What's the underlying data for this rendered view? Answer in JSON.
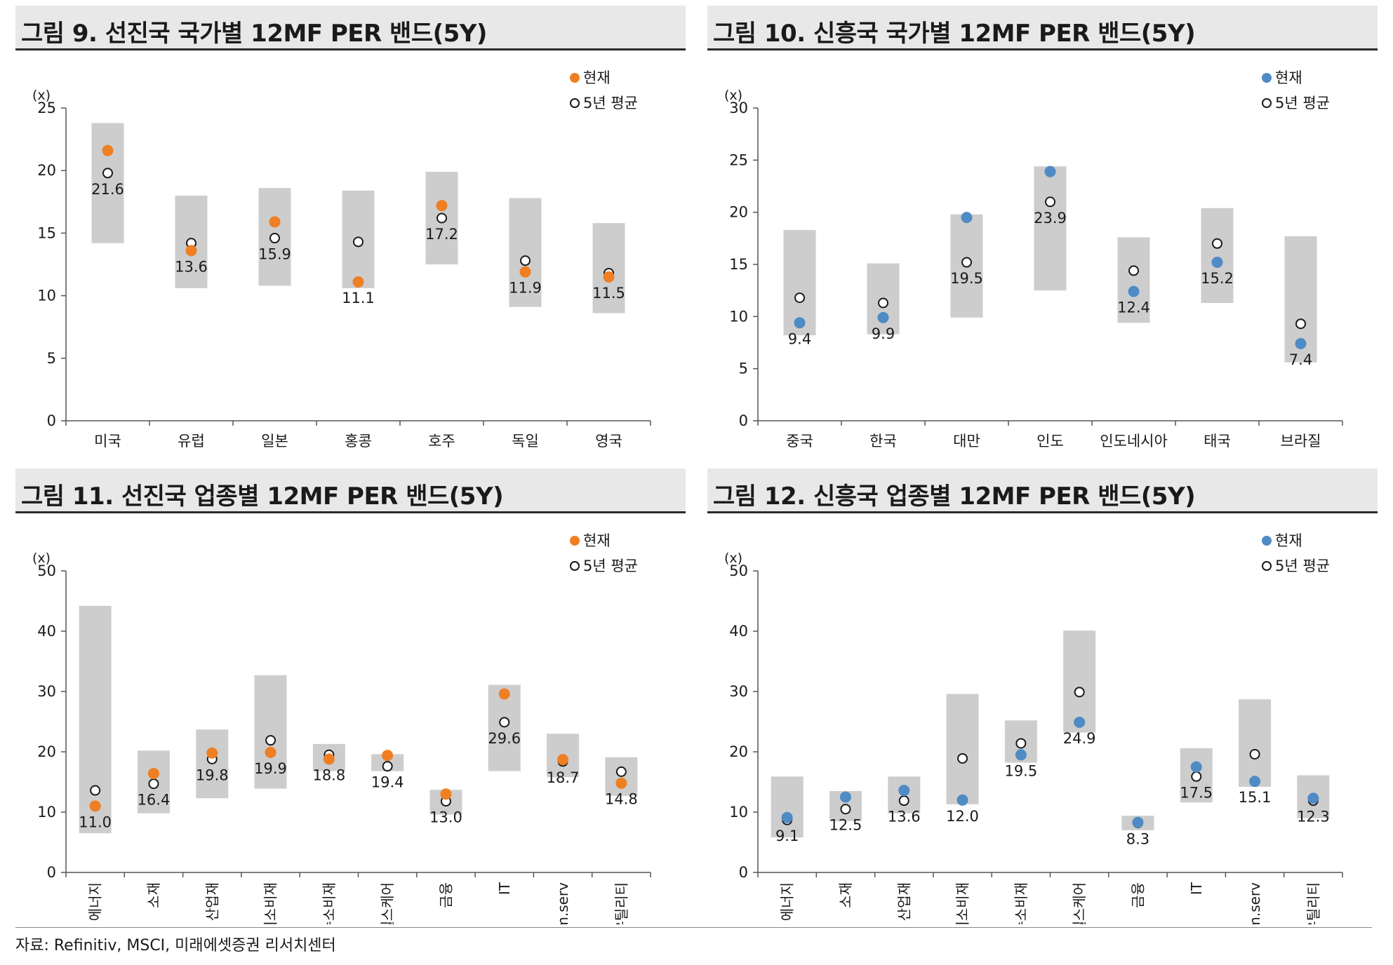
{
  "source": "자료: Refinitiv, MSCI, 미래에셋증권 리서치센터",
  "chart_data": [
    {
      "type": "scatter",
      "title": "그림 9. 선진국 국가별 12MF PER 밴드(5Y)",
      "unit": "(x)",
      "ylim": [
        0,
        25
      ],
      "yticks": [
        "0",
        "5",
        "10",
        "15",
        "20",
        "25"
      ],
      "categories": [
        "미국",
        "유럽",
        "일본",
        "홍콩",
        "호주",
        "독일",
        "영국"
      ],
      "band_low": [
        14.2,
        10.6,
        10.8,
        10.6,
        12.5,
        9.1,
        8.6
      ],
      "band_high": [
        23.8,
        18.0,
        18.6,
        18.4,
        19.9,
        17.8,
        15.8
      ],
      "current": [
        21.6,
        13.6,
        15.9,
        11.1,
        17.2,
        11.9,
        11.5
      ],
      "average": [
        19.8,
        14.2,
        14.6,
        14.3,
        16.2,
        12.8,
        11.8
      ],
      "labels": [
        "21.6",
        "13.6",
        "15.9",
        "11.1",
        "17.2",
        "11.9",
        "11.5"
      ],
      "label_pos": [
        "below",
        "below",
        "below",
        "below",
        "below",
        "below",
        "below"
      ],
      "current_color": "#ee7f22",
      "legend": {
        "current": "현재",
        "average": "5년 평균"
      },
      "rotate_labels": false
    },
    {
      "type": "scatter",
      "title": "그림 10. 신흥국 국가별 12MF PER 밴드(5Y)",
      "unit": "(x)",
      "ylim": [
        0,
        30
      ],
      "yticks": [
        "0",
        "5",
        "10",
        "15",
        "20",
        "25",
        "30"
      ],
      "categories": [
        "중국",
        "한국",
        "대만",
        "인도",
        "인도네시아",
        "태국",
        "브라질"
      ],
      "band_low": [
        8.2,
        8.3,
        9.9,
        12.5,
        9.4,
        11.3,
        5.6
      ],
      "band_high": [
        18.3,
        15.1,
        19.8,
        24.4,
        17.6,
        20.4,
        17.7
      ],
      "current": [
        9.4,
        9.9,
        19.5,
        23.9,
        12.4,
        15.2,
        7.4
      ],
      "average": [
        11.8,
        11.3,
        15.2,
        21.0,
        14.4,
        17.0,
        9.3
      ],
      "labels": [
        "9.4",
        "9.9",
        "19.5",
        "23.9",
        "12.4",
        "15.2",
        "7.4"
      ],
      "label_pos": [
        "below",
        "below",
        "below",
        "below",
        "below",
        "below",
        "below"
      ],
      "current_color": "#4f8bc4",
      "legend": {
        "current": "현재",
        "average": "5년 평균"
      },
      "rotate_labels": false
    },
    {
      "type": "scatter",
      "title": "그림 11. 선진국 업종별 12MF PER 밴드(5Y)",
      "unit": "(x)",
      "ylim": [
        0,
        50
      ],
      "yticks": [
        "0",
        "10",
        "20",
        "30",
        "40",
        "50"
      ],
      "categories": [
        "에너지",
        "소재",
        "산업재",
        "경기소비재",
        "필수소비재",
        "헬스케어",
        "금융",
        "IT",
        "Comm.serv",
        "유틸리티"
      ],
      "band_low": [
        6.5,
        9.8,
        12.3,
        13.9,
        16.8,
        16.8,
        9.6,
        16.8,
        15.8,
        12.7
      ],
      "band_high": [
        44.2,
        20.2,
        23.7,
        32.7,
        21.3,
        19.6,
        13.7,
        31.1,
        23.0,
        19.1
      ],
      "current": [
        11.0,
        16.4,
        19.8,
        19.9,
        18.8,
        19.4,
        13.0,
        29.6,
        18.7,
        14.8
      ],
      "average": [
        13.6,
        14.7,
        18.8,
        21.9,
        19.5,
        17.6,
        11.8,
        24.9,
        18.4,
        16.7
      ],
      "labels": [
        "11.0",
        "16.4",
        "19.8",
        "19.9",
        "18.8",
        "19.4",
        "13.0",
        "29.6",
        "18.7",
        "14.8"
      ],
      "label_pos": [
        "below",
        "below",
        "below",
        "below",
        "below",
        "below",
        "below",
        "below",
        "below",
        "below"
      ],
      "current_color": "#ee7f22",
      "legend": {
        "current": "현재",
        "average": "5년 평균"
      },
      "rotate_labels": true
    },
    {
      "type": "scatter",
      "title": "그림 12. 신흥국 업종별 12MF PER 밴드(5Y)",
      "unit": "(x)",
      "ylim": [
        0,
        50
      ],
      "yticks": [
        "0",
        "10",
        "20",
        "30",
        "40",
        "50"
      ],
      "categories": [
        "에너지",
        "소재",
        "산업재",
        "경기소비재",
        "필수소비재",
        "헬스케어",
        "금융",
        "IT",
        "Comm.serv",
        "유틸리티"
      ],
      "band_low": [
        5.8,
        8.5,
        9.8,
        11.3,
        18.2,
        23.2,
        7.0,
        11.6,
        14.2,
        9.0
      ],
      "band_high": [
        15.9,
        13.5,
        15.9,
        29.6,
        25.2,
        40.1,
        9.4,
        20.6,
        28.7,
        16.1
      ],
      "current": [
        9.1,
        12.5,
        13.6,
        12.0,
        19.5,
        24.9,
        8.3,
        17.5,
        15.1,
        12.3
      ],
      "average": [
        8.7,
        10.5,
        11.9,
        18.9,
        21.4,
        29.9,
        8.2,
        15.9,
        19.6,
        11.9
      ],
      "labels": [
        "9.1",
        "12.5",
        "13.6",
        "12.0",
        "19.5",
        "24.9",
        "8.3",
        "17.5",
        "15.1",
        "12.3"
      ],
      "label_pos": [
        "below",
        "below",
        "below",
        "below",
        "below",
        "below",
        "below",
        "below",
        "below",
        "below"
      ],
      "current_color": "#4f8bc4",
      "legend": {
        "current": "현재",
        "average": "5년 평균"
      },
      "rotate_labels": true
    }
  ]
}
